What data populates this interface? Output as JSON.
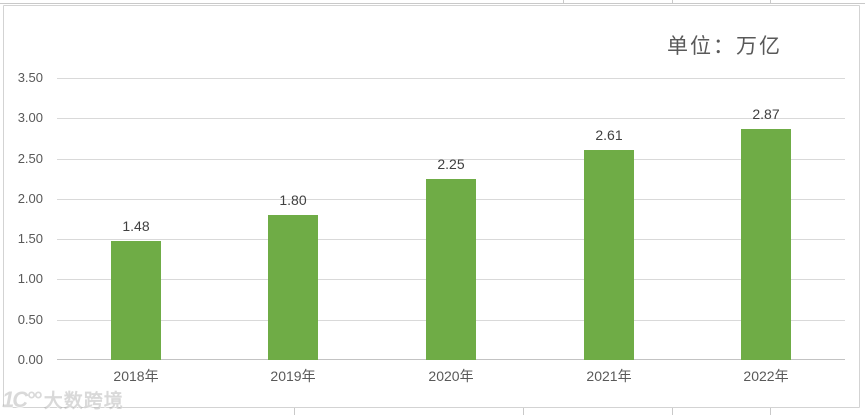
{
  "title": "单位：万亿",
  "watermark": {
    "logo": "1C°°",
    "text": "大数跨境"
  },
  "colors": {
    "bar": "#6fac46",
    "gridline": "#d9d9d9",
    "axis_line": "#c3c3c3",
    "axis_text": "#595959",
    "data_label_text": "#404040",
    "title_text": "#595959",
    "frame_border": "#d3d3d3"
  },
  "chart_data": {
    "type": "bar",
    "title": "单位：万亿",
    "categories": [
      "2018年",
      "2019年",
      "2020年",
      "2021年",
      "2022年"
    ],
    "values": [
      1.48,
      1.8,
      2.25,
      2.61,
      2.87
    ],
    "data_labels": [
      "1.48",
      "1.80",
      "2.25",
      "2.61",
      "2.87"
    ],
    "xlabel": "",
    "ylabel": "",
    "ylim": [
      0,
      3.5
    ],
    "ytick_step": 0.5,
    "ytick_labels": [
      "0.00",
      "0.50",
      "1.00",
      "1.50",
      "2.00",
      "2.50",
      "3.00",
      "3.50"
    ],
    "grid": true,
    "legend": false
  }
}
